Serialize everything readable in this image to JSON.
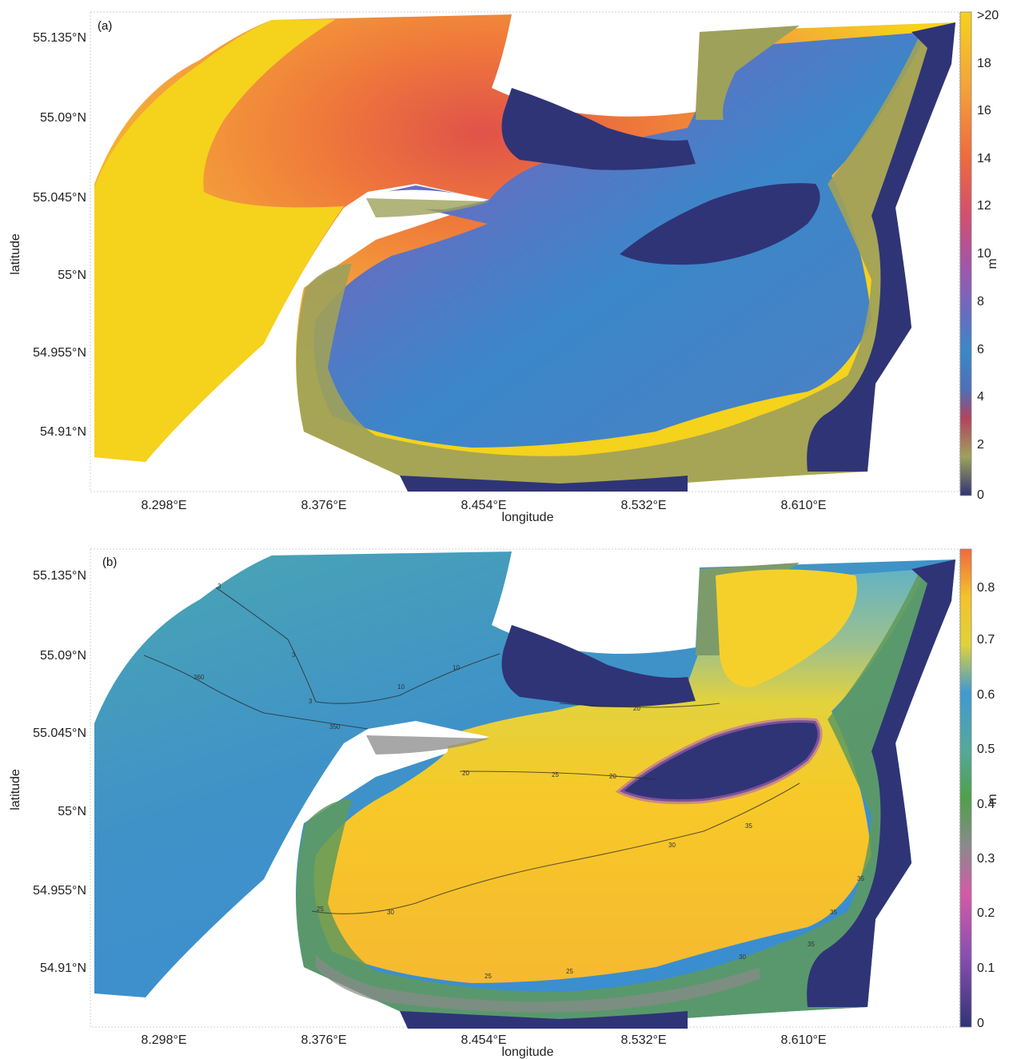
{
  "figure": {
    "panels": [
      {
        "id": "a",
        "label": "(a)",
        "x_axis_label": "longitude",
        "y_axis_label": "latitude",
        "x_ticks": [
          "8.298°E",
          "8.376°E",
          "8.454°E",
          "8.532°E",
          "8.610°E"
        ],
        "y_ticks": [
          "55.135°N",
          "55.09°N",
          "55.045°N",
          "55°N",
          "54.955°N",
          "54.91°N"
        ],
        "colorbar": {
          "unit": "m",
          "ticks": [
            ">20",
            "18",
            "16",
            "14",
            "12",
            "10",
            "8",
            "6",
            "4",
            "2",
            "0"
          ],
          "colors": [
            "#f5d21c",
            "#f4a43a",
            "#ef6a3e",
            "#d24f6f",
            "#a455a8",
            "#6a6bc0",
            "#3b87c9",
            "#4d6fb8",
            "#b3435e",
            "#9ea15a",
            "#2f3477"
          ]
        }
      },
      {
        "id": "b",
        "label": "(b)",
        "x_axis_label": "longitude",
        "y_axis_label": "latitude",
        "x_ticks": [
          "8.298°E",
          "8.376°E",
          "8.454°E",
          "8.532°E",
          "8.610°E"
        ],
        "y_ticks": [
          "55.135°N",
          "55.09°N",
          "55.045°N",
          "55°N",
          "54.955°N",
          "54.91°N"
        ],
        "colorbar": {
          "unit": "m",
          "ticks": [
            "0.8",
            "0.7",
            "0.6",
            "0.5",
            "0.4",
            "0.3",
            "0.2",
            "0.1",
            "0"
          ],
          "colors": [
            "#ef6a3e",
            "#f4c22a",
            "#e0d23a",
            "#3f9ad2",
            "#55a89a",
            "#4ea04a",
            "#8a8a8a",
            "#d45aa8",
            "#8a4fb0",
            "#2f3477"
          ]
        },
        "contour_labels": [
          "3",
          "3",
          "360",
          "350",
          "3",
          "10",
          "10",
          "20",
          "20",
          "25",
          "20",
          "35",
          "30",
          "30",
          "25",
          "35",
          "35",
          "25",
          "25",
          "30",
          "35"
        ]
      }
    ]
  },
  "legend_colors": {
    "land_white": "#ffffff",
    "deep_sea_yellow": "#f5d21c",
    "tidal_flat_olive": "#9ea15a",
    "channel_blue": "#3b87c9",
    "dry_land_navy": "#2f3477",
    "current_blue": "#3f8fc8",
    "current_yellow": "#f4c22a"
  }
}
